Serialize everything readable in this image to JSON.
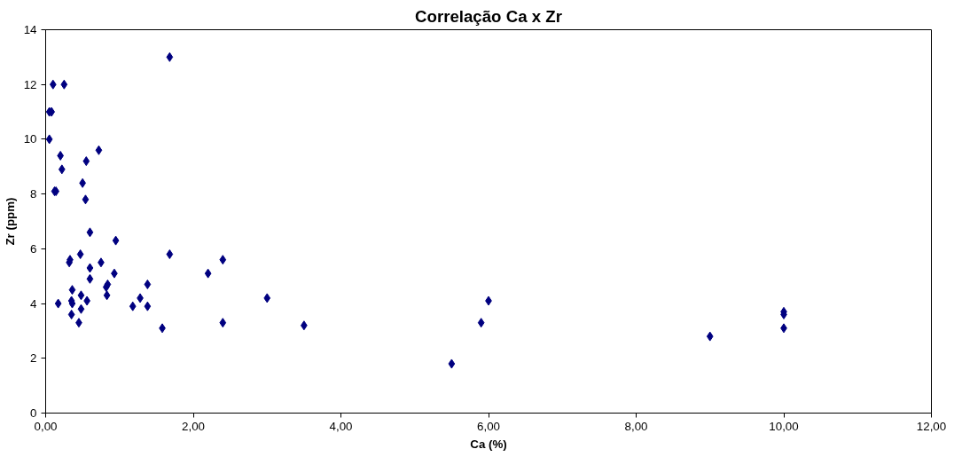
{
  "chart_data": {
    "type": "scatter",
    "title": "Correlação Ca x Zr",
    "xlabel": "Ca (%)",
    "ylabel": "Zr (ppm)",
    "x": [
      0.05,
      0.08,
      0.1,
      0.25,
      0.05,
      0.2,
      0.22,
      0.12,
      0.14,
      0.72,
      0.55,
      0.5,
      0.54,
      1.68,
      0.6,
      0.95,
      0.47,
      1.68,
      0.33,
      0.32,
      0.75,
      0.6,
      0.6,
      0.93,
      0.84,
      0.82,
      0.83,
      1.38,
      0.36,
      0.48,
      0.35,
      0.36,
      0.56,
      0.17,
      0.35,
      0.48,
      0.45,
      1.18,
      1.28,
      1.38,
      1.58,
      2.2,
      2.4,
      2.4,
      3.0,
      3.5,
      5.5,
      5.9,
      6.0,
      9.0,
      10.0,
      10.0,
      10.0
    ],
    "series": [
      {
        "color": "#000080",
        "values": [
          11,
          11,
          12,
          12,
          10,
          9.4,
          8.9,
          8.1,
          8.1,
          9.6,
          9.2,
          8.4,
          7.8,
          13,
          6.6,
          6.3,
          5.8,
          5.8,
          5.6,
          5.5,
          5.5,
          5.3,
          4.9,
          5.1,
          4.7,
          4.6,
          4.3,
          4.7,
          4.5,
          4.3,
          4.1,
          4.0,
          4.1,
          4.0,
          3.6,
          3.8,
          3.3,
          3.9,
          4.2,
          3.9,
          3.1,
          5.1,
          5.6,
          3.3,
          4.2,
          3.2,
          1.8,
          3.3,
          4.1,
          2.8,
          3.7,
          3.6,
          3.1
        ]
      }
    ],
    "marker": "diamond",
    "xlim": [
      0,
      12
    ],
    "xticks": [
      {
        "value": 0,
        "label": "0,00"
      },
      {
        "value": 2,
        "label": "2,00"
      },
      {
        "value": 4,
        "label": "4,00"
      },
      {
        "value": 6,
        "label": "6,00"
      },
      {
        "value": 8,
        "label": "8,00"
      },
      {
        "value": 10,
        "label": "10,00"
      },
      {
        "value": 12,
        "label": "12,00"
      }
    ],
    "ylim": [
      0,
      14
    ],
    "yticks": [
      0,
      2,
      4,
      6,
      8,
      10,
      12,
      14
    ],
    "grid": false
  }
}
